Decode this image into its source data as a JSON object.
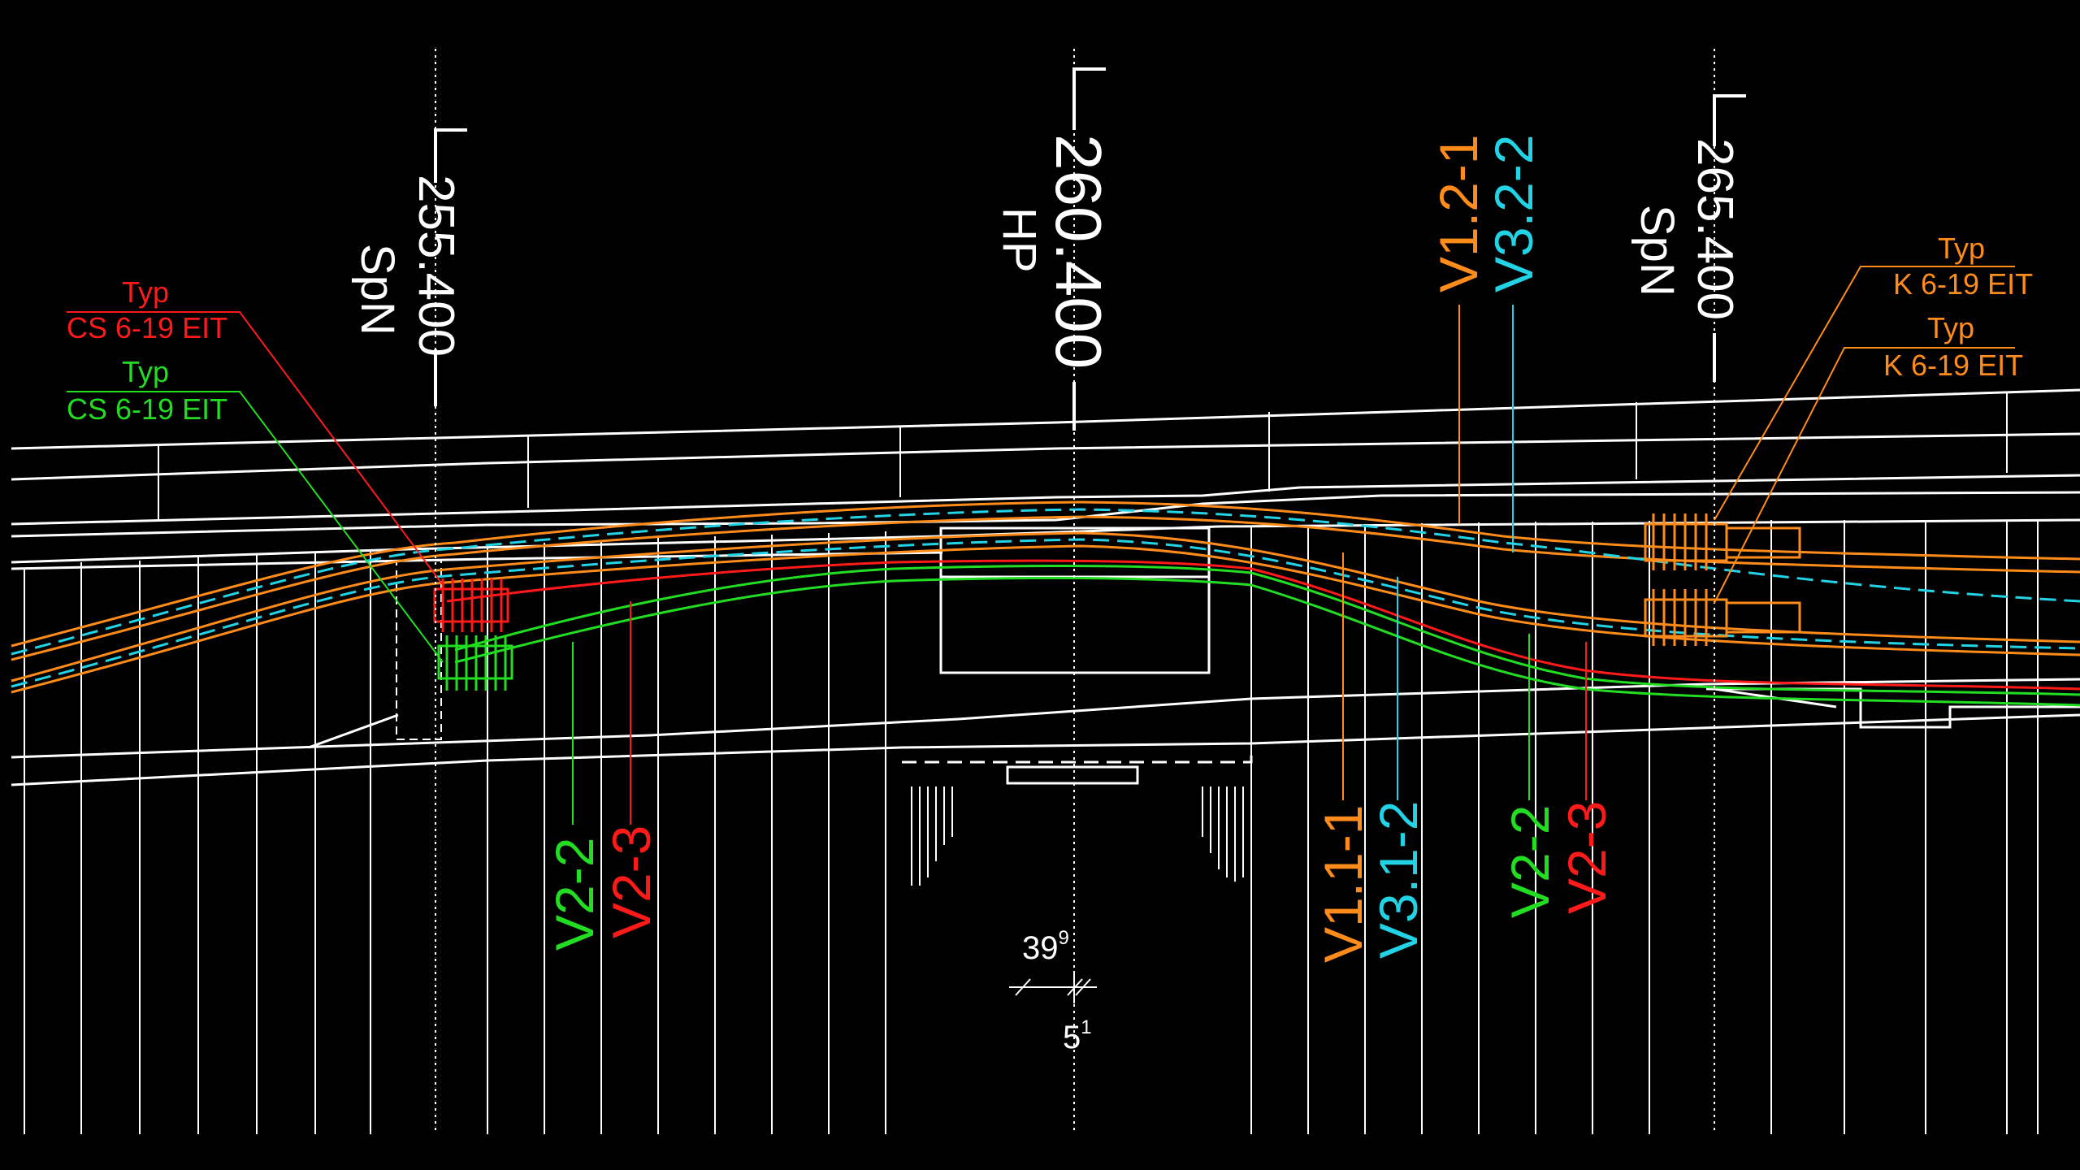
{
  "stations": [
    {
      "value": "255.400",
      "mark": "SpN"
    },
    {
      "value": "260.400",
      "mark": "HP"
    },
    {
      "value": "265.400",
      "mark": "SpN"
    }
  ],
  "anchor_callouts": [
    {
      "typ": "Typ",
      "spec": "CS 6-19 EIT",
      "color": "#ff1a1a"
    },
    {
      "typ": "Typ",
      "spec": "CS 6-19 EIT",
      "color": "#22dd22"
    },
    {
      "typ": "Typ",
      "spec": "K 6-19 EIT",
      "color": "#ff8c1a"
    },
    {
      "typ": "Typ",
      "spec": "K 6-19 EIT",
      "color": "#ff8c1a"
    }
  ],
  "tendon_labels": {
    "left": [
      {
        "text": "V2-2",
        "color": "#22dd22"
      },
      {
        "text": "V2-3",
        "color": "#ff1a1a"
      }
    ],
    "top": [
      {
        "text": "V1.2-1",
        "color": "#ff8c1a"
      },
      {
        "text": "V3.2-2",
        "color": "#22d3e6"
      }
    ],
    "right": [
      {
        "text": "V1.1-1",
        "color": "#ff8c1a"
      },
      {
        "text": "V3.1-2",
        "color": "#22d3e6"
      },
      {
        "text": "V2-2",
        "color": "#22dd22"
      },
      {
        "text": "V2-3",
        "color": "#ff1a1a"
      }
    ]
  },
  "dimensions": {
    "d1_base": "39",
    "d1_exp": "9",
    "d2_base": "5",
    "d2_exp": "1"
  },
  "colors": {
    "background": "#000000",
    "structure": "#ffffff",
    "orange": "#ff8c1a",
    "cyan": "#22d3e6",
    "green": "#22dd22",
    "red": "#ff1a1a"
  }
}
